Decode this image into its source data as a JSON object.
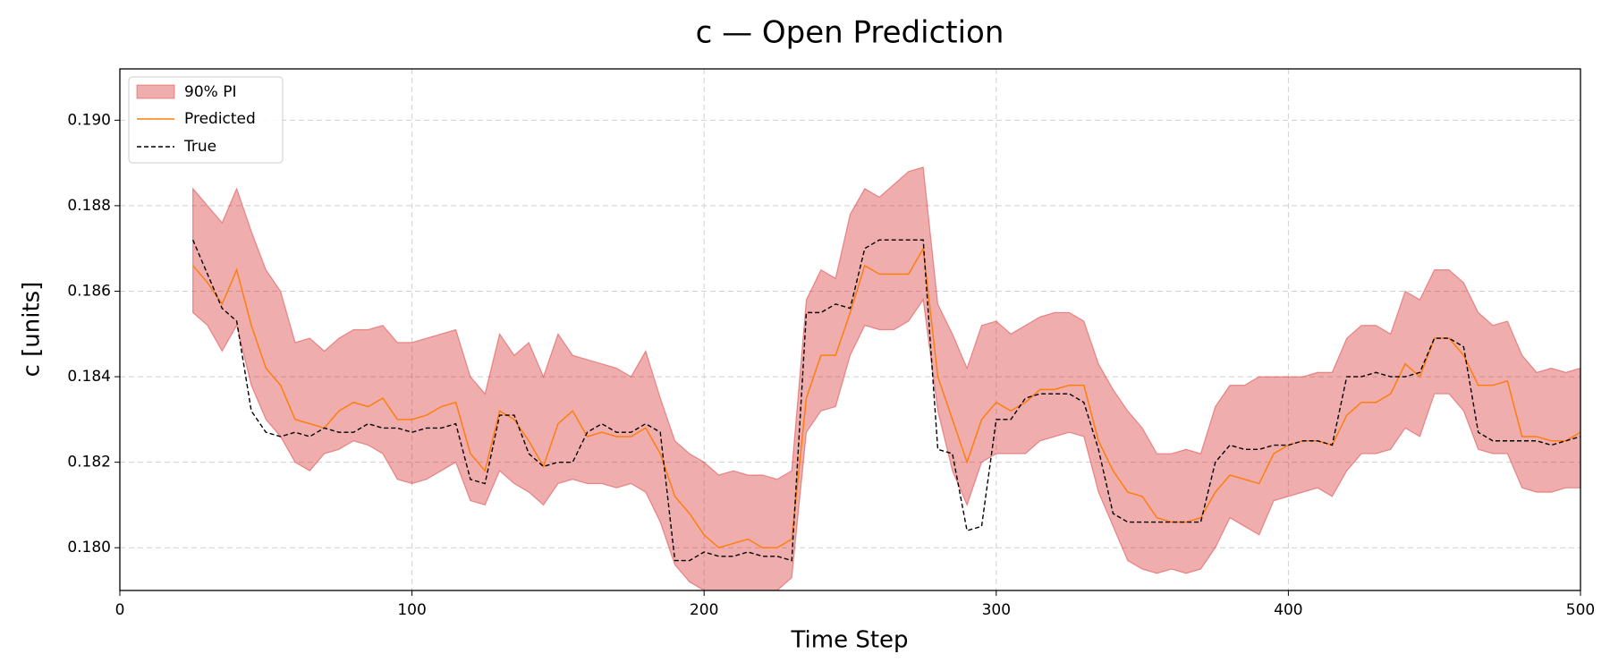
{
  "chart_data": {
    "type": "line",
    "title": "c — Open Prediction",
    "x_label": "Time Step",
    "y_label": "c [units]",
    "xlim": [
      0,
      500
    ],
    "xticks": [
      0,
      100,
      200,
      300,
      400,
      500
    ],
    "ylim": [
      0.179,
      0.1912
    ],
    "yticks": [
      {
        "value": 0.18,
        "label": "0.180"
      },
      0.182,
      0.184,
      0.186,
      0.188,
      {
        "value": 0.19,
        "label": "0.190"
      }
    ],
    "grid": true,
    "legend": "upper left",
    "x": [
      25,
      30,
      35,
      40,
      45,
      50,
      55,
      60,
      65,
      70,
      75,
      80,
      85,
      90,
      95,
      100,
      105,
      110,
      115,
      120,
      125,
      130,
      135,
      140,
      145,
      150,
      155,
      160,
      165,
      170,
      175,
      180,
      185,
      190,
      195,
      200,
      205,
      210,
      215,
      220,
      225,
      230,
      235,
      240,
      245,
      250,
      255,
      260,
      265,
      270,
      275,
      280,
      285,
      290,
      295,
      300,
      305,
      310,
      315,
      320,
      325,
      330,
      335,
      340,
      345,
      350,
      355,
      360,
      365,
      370,
      375,
      380,
      385,
      390,
      395,
      400,
      405,
      410,
      415,
      420,
      425,
      430,
      435,
      440,
      445,
      450,
      455,
      460,
      465,
      470,
      475,
      480,
      485,
      490,
      495,
      500
    ],
    "band": {
      "name": "90% PI",
      "color": "#d62728",
      "upper": [
        0.1884,
        0.188,
        0.1876,
        0.1884,
        0.1874,
        0.1865,
        0.186,
        0.1848,
        0.1849,
        0.1846,
        0.1849,
        0.1851,
        0.1851,
        0.1852,
        0.1848,
        0.1848,
        0.1849,
        0.185,
        0.1851,
        0.184,
        0.1836,
        0.185,
        0.1845,
        0.1848,
        0.184,
        0.185,
        0.1845,
        0.1844,
        0.1843,
        0.1842,
        0.184,
        0.1846,
        0.1835,
        0.1825,
        0.1822,
        0.182,
        0.1817,
        0.1818,
        0.1817,
        0.1817,
        0.1816,
        0.1818,
        0.1858,
        0.1865,
        0.1863,
        0.1878,
        0.1884,
        0.1882,
        0.1885,
        0.1888,
        0.1889,
        0.1857,
        0.185,
        0.1842,
        0.1852,
        0.1853,
        0.185,
        0.1852,
        0.1854,
        0.1855,
        0.1855,
        0.1853,
        0.1843,
        0.1837,
        0.1832,
        0.1828,
        0.1822,
        0.1822,
        0.1823,
        0.1822,
        0.1833,
        0.1838,
        0.1838,
        0.184,
        0.184,
        0.184,
        0.184,
        0.1841,
        0.1841,
        0.1849,
        0.1852,
        0.1852,
        0.185,
        0.186,
        0.1858,
        0.1865,
        0.1865,
        0.1862,
        0.1855,
        0.1852,
        0.1853,
        0.1845,
        0.1841,
        0.1842,
        0.1841,
        0.1842
      ],
      "lower": [
        0.1855,
        0.1852,
        0.1846,
        0.1852,
        0.1838,
        0.183,
        0.1826,
        0.182,
        0.1818,
        0.1822,
        0.1823,
        0.1825,
        0.1824,
        0.1822,
        0.1816,
        0.1815,
        0.1816,
        0.1818,
        0.182,
        0.1811,
        0.181,
        0.1818,
        0.1815,
        0.1813,
        0.181,
        0.1815,
        0.1816,
        0.1815,
        0.1815,
        0.1814,
        0.1815,
        0.1813,
        0.1806,
        0.1796,
        0.1792,
        0.179,
        0.1789,
        0.179,
        0.1789,
        0.1789,
        0.179,
        0.1793,
        0.1827,
        0.1832,
        0.1833,
        0.1845,
        0.1852,
        0.1851,
        0.1851,
        0.1853,
        0.1858,
        0.1832,
        0.1818,
        0.181,
        0.182,
        0.1822,
        0.1822,
        0.1822,
        0.1825,
        0.1826,
        0.1827,
        0.1826,
        0.1813,
        0.1805,
        0.1797,
        0.1795,
        0.1794,
        0.1795,
        0.1794,
        0.1795,
        0.18,
        0.1807,
        0.1805,
        0.1803,
        0.1811,
        0.1812,
        0.1813,
        0.1814,
        0.1812,
        0.1818,
        0.1822,
        0.1822,
        0.1823,
        0.1828,
        0.1826,
        0.1836,
        0.1836,
        0.1832,
        0.1823,
        0.1822,
        0.1822,
        0.1814,
        0.1813,
        0.1813,
        0.1814,
        0.1814
      ]
    },
    "series": [
      {
        "name": "Predicted",
        "color": "#ff7f0e",
        "dashed": false,
        "values": [
          0.1866,
          0.1862,
          0.1857,
          0.1865,
          0.1852,
          0.1842,
          0.1838,
          0.183,
          0.1829,
          0.1828,
          0.1832,
          0.1834,
          0.1833,
          0.1835,
          0.183,
          0.183,
          0.1831,
          0.1833,
          0.1834,
          0.1822,
          0.1818,
          0.1832,
          0.183,
          0.1825,
          0.1819,
          0.1829,
          0.1832,
          0.1826,
          0.1827,
          0.1826,
          0.1826,
          0.1828,
          0.1822,
          0.1812,
          0.1808,
          0.1803,
          0.18,
          0.1801,
          0.1802,
          0.18,
          0.18,
          0.1802,
          0.1835,
          0.1845,
          0.1845,
          0.1855,
          0.1866,
          0.1864,
          0.1864,
          0.1864,
          0.187,
          0.184,
          0.183,
          0.182,
          0.183,
          0.1834,
          0.1832,
          0.1834,
          0.1837,
          0.1837,
          0.1838,
          0.1838,
          0.1825,
          0.1818,
          0.1813,
          0.1812,
          0.1807,
          0.1806,
          0.1806,
          0.1807,
          0.1813,
          0.1817,
          0.1816,
          0.1815,
          0.1822,
          0.1824,
          0.1825,
          0.1825,
          0.1824,
          0.1831,
          0.1834,
          0.1834,
          0.1836,
          0.1843,
          0.184,
          0.1849,
          0.1849,
          0.1845,
          0.1838,
          0.1838,
          0.1839,
          0.1826,
          0.1826,
          0.1825,
          0.1825,
          0.1827
        ]
      },
      {
        "name": "True",
        "color": "#000000",
        "dashed": true,
        "values": [
          0.1872,
          0.1864,
          0.1856,
          0.1853,
          0.1832,
          0.1827,
          0.1826,
          0.1827,
          0.1826,
          0.1828,
          0.1827,
          0.1827,
          0.1829,
          0.1828,
          0.1828,
          0.1827,
          0.1828,
          0.1828,
          0.1829,
          0.1816,
          0.1815,
          0.1831,
          0.1831,
          0.1822,
          0.1819,
          0.182,
          0.182,
          0.1827,
          0.1829,
          0.1827,
          0.1827,
          0.1829,
          0.1827,
          0.1797,
          0.1797,
          0.1799,
          0.1798,
          0.1798,
          0.1799,
          0.1798,
          0.1798,
          0.1797,
          0.1855,
          0.1855,
          0.1857,
          0.1856,
          0.187,
          0.1872,
          0.1872,
          0.1872,
          0.1872,
          0.1823,
          0.1822,
          0.1804,
          0.1805,
          0.183,
          0.183,
          0.1835,
          0.1836,
          0.1836,
          0.1836,
          0.1834,
          0.1823,
          0.1808,
          0.1806,
          0.1806,
          0.1806,
          0.1806,
          0.1806,
          0.1806,
          0.182,
          0.1824,
          0.1823,
          0.1823,
          0.1824,
          0.1824,
          0.1825,
          0.1825,
          0.1824,
          0.184,
          0.184,
          0.1841,
          0.184,
          0.184,
          0.1841,
          0.1849,
          0.1849,
          0.1847,
          0.1827,
          0.1825,
          0.1825,
          0.1825,
          0.1825,
          0.1824,
          0.1825,
          0.1826
        ]
      }
    ]
  }
}
